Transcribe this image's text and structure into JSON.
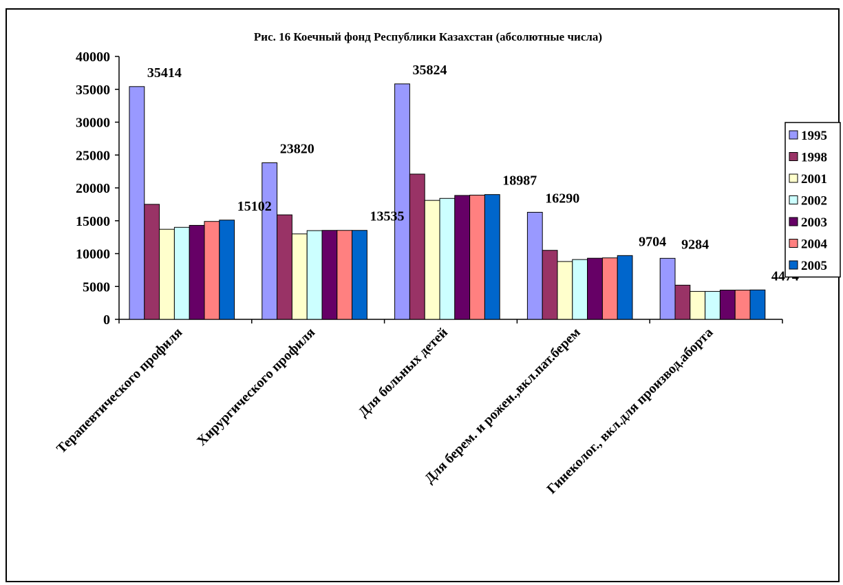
{
  "chart_data": {
    "type": "bar",
    "title": "Рис. 16 Коечный фонд Республики Казахстан (абсолютные числа)",
    "xlabel": "",
    "ylabel": "",
    "ylim": [
      0,
      40000
    ],
    "yticks": [
      0,
      5000,
      10000,
      15000,
      20000,
      25000,
      30000,
      35000,
      40000
    ],
    "grid": false,
    "legend_position": "right",
    "categories": [
      "Терапевтического профиля",
      "Хирургического профиля",
      "Для больных детей",
      "Для берем. и рожен.,вкл.пат.берем",
      "Гинеколог., вкл.для производ.аборта"
    ],
    "series": [
      {
        "name": "1995",
        "color": "#9999FF",
        "values": [
          35414,
          23820,
          35824,
          16290,
          9284
        ]
      },
      {
        "name": "1998",
        "color": "#993366",
        "values": [
          17500,
          15900,
          22100,
          10500,
          5200
        ]
      },
      {
        "name": "2001",
        "color": "#FFFFCC",
        "values": [
          13700,
          13000,
          18100,
          8800,
          4250
        ]
      },
      {
        "name": "2002",
        "color": "#CCFFFF",
        "values": [
          14000,
          13500,
          18400,
          9100,
          4250
        ]
      },
      {
        "name": "2003",
        "color": "#660066",
        "values": [
          14300,
          13535,
          18850,
          9300,
          4450
        ]
      },
      {
        "name": "2004",
        "color": "#FF8080",
        "values": [
          14900,
          13535,
          18900,
          9350,
          4450
        ]
      },
      {
        "name": "2005",
        "color": "#0066CC",
        "values": [
          15102,
          13535,
          18987,
          9704,
          4474
        ]
      }
    ],
    "data_labels": [
      {
        "category_index": 0,
        "series_index": 0,
        "text": "35414"
      },
      {
        "category_index": 0,
        "series_index": 6,
        "text": "15102"
      },
      {
        "category_index": 1,
        "series_index": 0,
        "text": "23820"
      },
      {
        "category_index": 1,
        "series_index": 6,
        "text": "13535"
      },
      {
        "category_index": 2,
        "series_index": 0,
        "text": "35824"
      },
      {
        "category_index": 2,
        "series_index": 6,
        "text": "18987"
      },
      {
        "category_index": 3,
        "series_index": 0,
        "text": "16290"
      },
      {
        "category_index": 3,
        "series_index": 6,
        "text": "9704"
      },
      {
        "category_index": 4,
        "series_index": 0,
        "text": "9284"
      },
      {
        "category_index": 4,
        "series_index": 6,
        "text": "4474"
      }
    ]
  }
}
